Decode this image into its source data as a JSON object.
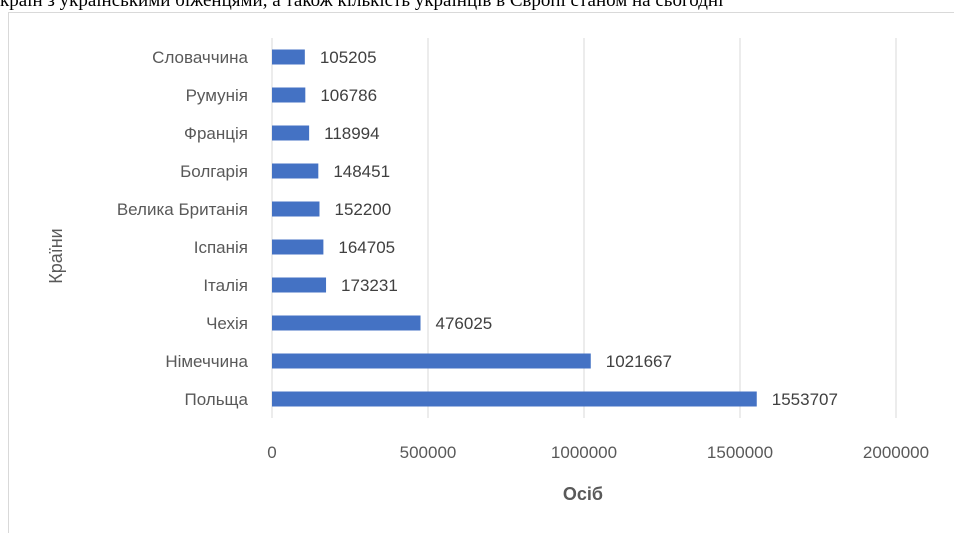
{
  "document": {
    "text_above_chart": "країн з українськими біженцями, а також кількість українців в Європі станом на сьогодні"
  },
  "chart_data": {
    "type": "bar",
    "orientation": "horizontal",
    "title": "",
    "xlabel": "Осіб",
    "ylabel": "Країни",
    "categories": [
      "Польща",
      "Німеччина",
      "Чехія",
      "Італія",
      "Іспанія",
      "Велика Британія",
      "Болгарія",
      "Франція",
      "Румунія",
      "Словаччина"
    ],
    "values": [
      1553707,
      1021667,
      476025,
      173231,
      164705,
      152200,
      148451,
      118994,
      106786,
      105205
    ],
    "xlim": [
      0,
      2000000
    ],
    "xticks": [
      "0",
      "500000",
      "1000000",
      "1500000",
      "2000000"
    ],
    "grid": "vertical",
    "bar_color": "#4472c4",
    "legend": "none"
  }
}
